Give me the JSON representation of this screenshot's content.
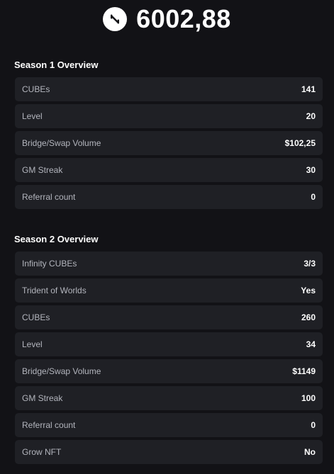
{
  "header": {
    "logo_icon": "network-logo-icon",
    "balance": "6002,88"
  },
  "season1": {
    "title": "Season 1 Overview",
    "rows": [
      {
        "label": "CUBEs",
        "value": "141"
      },
      {
        "label": "Level",
        "value": "20"
      },
      {
        "label": "Bridge/Swap Volume",
        "value": "$102,25"
      },
      {
        "label": "GM Streak",
        "value": "30"
      },
      {
        "label": "Referral count",
        "value": "0"
      }
    ]
  },
  "season2": {
    "title": "Season 2 Overview",
    "rows": [
      {
        "label": "Infinity CUBEs",
        "value": "3/3"
      },
      {
        "label": "Trident of Worlds",
        "value": "Yes"
      },
      {
        "label": "CUBEs",
        "value": "260"
      },
      {
        "label": "Level",
        "value": "34"
      },
      {
        "label": "Bridge/Swap Volume",
        "value": "$1149"
      },
      {
        "label": "GM Streak",
        "value": "100"
      },
      {
        "label": "Referral count",
        "value": "0"
      },
      {
        "label": "Grow NFT",
        "value": "No"
      }
    ]
  },
  "colors": {
    "background": "#121216",
    "row_background": "#1f2025",
    "label": "#b3b5bd",
    "value": "#ffffff"
  }
}
